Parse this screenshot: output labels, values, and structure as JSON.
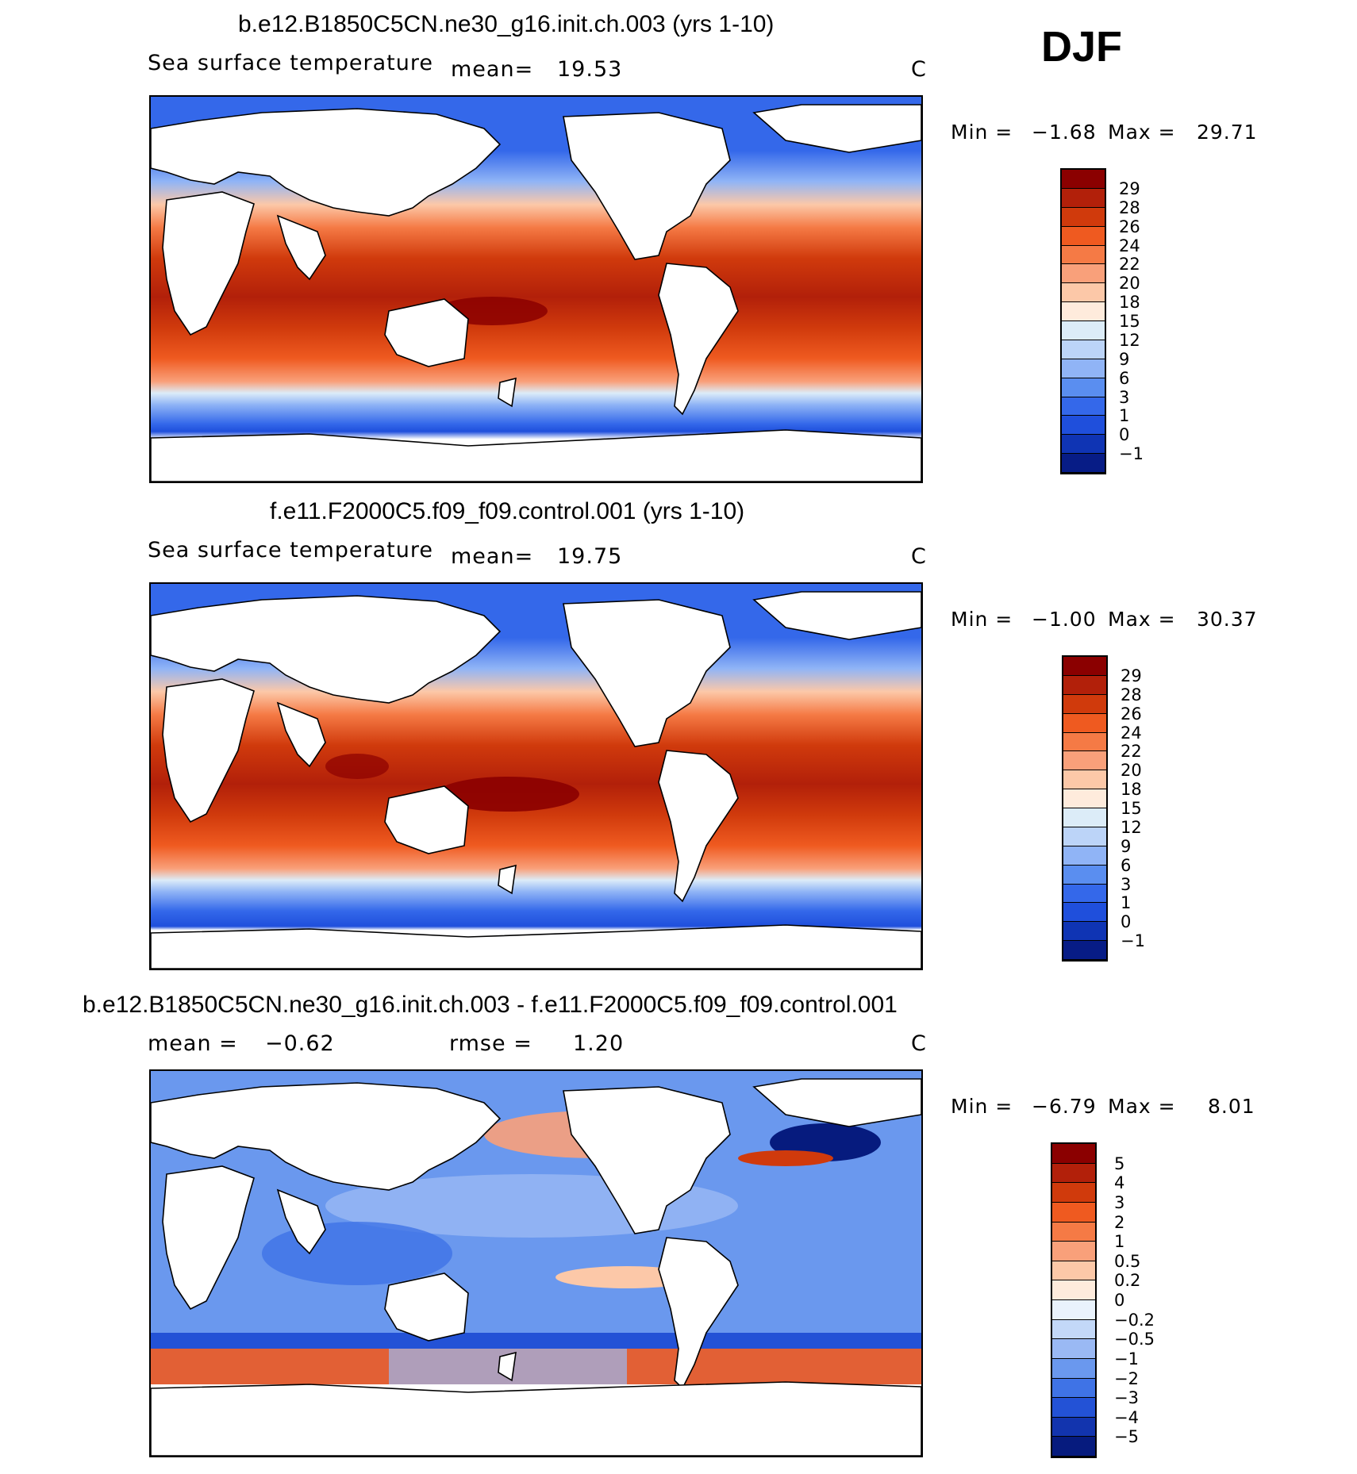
{
  "season": "DJF",
  "panels": [
    {
      "title": "b.e12.B1850C5CN.ne30_g16.init.ch.003 (yrs 1-10)",
      "variable": "Sea surface temperature",
      "mean_label": "mean=",
      "mean_value": "19.53",
      "units": "C",
      "min_label": "Min =",
      "min_value": "−1.68",
      "max_label": "Max =",
      "max_value": "29.71",
      "colorbar_levels": [
        "29",
        "28",
        "26",
        "24",
        "22",
        "20",
        "18",
        "15",
        "12",
        "9",
        "6",
        "3",
        "1",
        "0",
        "−1"
      ]
    },
    {
      "title": "f.e11.F2000C5.f09_f09.control.001 (yrs 1-10)",
      "variable": "Sea surface temperature",
      "mean_label": "mean=",
      "mean_value": "19.75",
      "units": "C",
      "min_label": "Min =",
      "min_value": "−1.00",
      "max_label": "Max =",
      "max_value": "30.37",
      "colorbar_levels": [
        "29",
        "28",
        "26",
        "24",
        "22",
        "20",
        "18",
        "15",
        "12",
        "9",
        "6",
        "3",
        "1",
        "0",
        "−1"
      ]
    },
    {
      "title": "b.e12.B1850C5CN.ne30_g16.init.ch.003 - f.e11.F2000C5.f09_f09.control.001",
      "mean_label": "mean =",
      "mean_value": "−0.62",
      "rmse_label": "rmse =",
      "rmse_value": "1.20",
      "units": "C",
      "min_label": "Min =",
      "min_value": "−6.79",
      "max_label": "Max =",
      "max_value": "8.01",
      "colorbar_levels": [
        "5",
        "4",
        "3",
        "2",
        "1",
        "0.5",
        "0.2",
        "0",
        "−0.2",
        "−0.5",
        "−1",
        "−2",
        "−3",
        "−4",
        "−5"
      ]
    }
  ],
  "colors": {
    "abs_scale": [
      "#8b0000",
      "#b2200a",
      "#d03a0c",
      "#ef5a20",
      "#f57a45",
      "#f9a07a",
      "#fcc8a8",
      "#feebdc",
      "#dcecf8",
      "#bcd4f8",
      "#90b4f6",
      "#5a8ef0",
      "#3468ea",
      "#1f4fdc",
      "#0f34b4",
      "#071c86"
    ],
    "diff_scale": [
      "#8b0000",
      "#b2200a",
      "#d03a0c",
      "#ef5a20",
      "#f57a45",
      "#f9a07a",
      "#fcc8a8",
      "#feebdc",
      "#e9f2fc",
      "#c3d8f8",
      "#9ab9f4",
      "#6a98ee",
      "#3f73e6",
      "#2352d6",
      "#1234ae",
      "#061b7e"
    ]
  }
}
